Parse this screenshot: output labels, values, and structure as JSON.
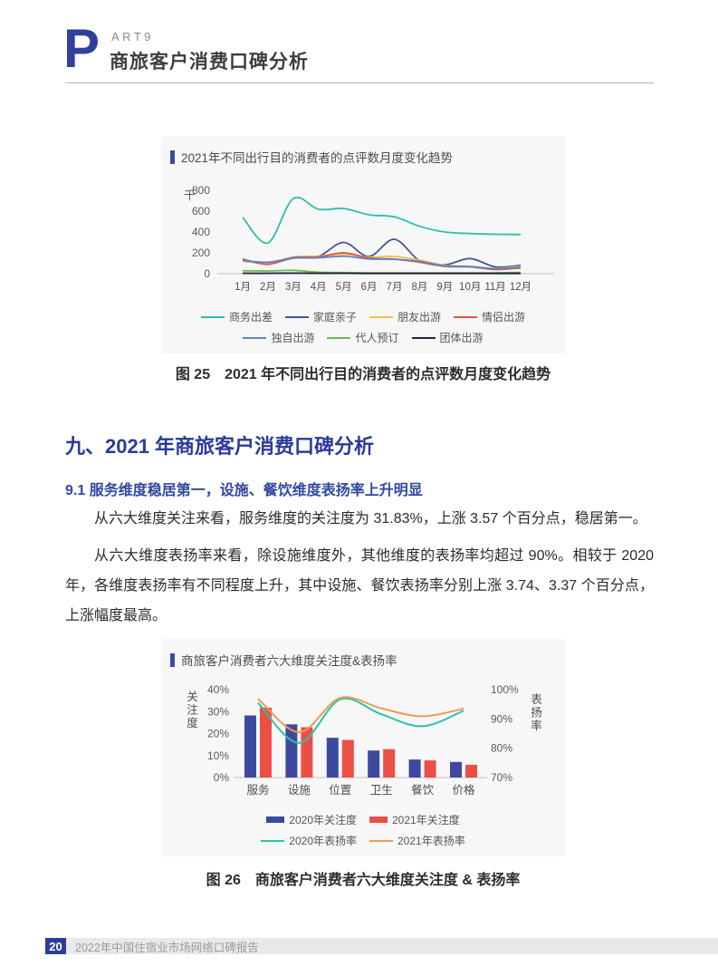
{
  "header": {
    "brand_letter": "P",
    "brand_rest": "ART9",
    "title": "商旅客户消费口碑分析"
  },
  "figure25": {
    "caption": "图 25　2021 年不同出行目的消费者的点评数月度变化趋势"
  },
  "figure26": {
    "caption": "图 26　商旅客户消费者六大维度关注度 & 表扬率"
  },
  "section": {
    "heading": "九、2021 年商旅客户消费口碑分析",
    "sub_heading": "9.1  服务维度稳居第一，设施、餐饮维度表扬率上升明显",
    "para1": "从六大维度关注来看，服务维度的关注度为 31.83%，上涨 3.57 个百分点，稳居第一。",
    "para2": "从六大维度表扬率来看，除设施维度外，其他维度的表扬率均超过 90%。相较于 2020 年，各维度表扬率有不同程度上升，其中设施、餐饮表扬率分别上涨 3.74、3.37 个百分点，上涨幅度最高。"
  },
  "footer": {
    "page_number": "20",
    "text": "2022年中国住宿业市场网络口碑报告"
  },
  "colors": {
    "brand_blue": "#31409B",
    "heading_blue": "#2B3B98",
    "card_bg": "#f7f7f8",
    "axis_line": "#dcdcdc",
    "footer_bar": "#e9e9eb"
  },
  "chart_data": [
    {
      "type": "line",
      "title": "2021年不同出行目的消费者的点评数月度变化趋势",
      "unit": "千",
      "x": [
        "1月",
        "2月",
        "3月",
        "4月",
        "5月",
        "6月",
        "7月",
        "8月",
        "9月",
        "10月",
        "11月",
        "12月"
      ],
      "ylabel": "千",
      "ylim": [
        0,
        800
      ],
      "yticks": [
        0,
        200,
        400,
        600,
        800
      ],
      "grid": false,
      "legend_position": "bottom",
      "series": [
        {
          "name": "商务出差",
          "color": "#2EBFA9",
          "values": [
            540,
            295,
            720,
            618,
            625,
            565,
            545,
            455,
            400,
            385,
            378,
            376
          ]
        },
        {
          "name": "家庭亲子",
          "color": "#4A549C",
          "values": [
            135,
            95,
            150,
            165,
            300,
            165,
            330,
            125,
            85,
            145,
            65,
            80
          ]
        },
        {
          "name": "朋友出游",
          "color": "#F2C24A",
          "values": [
            120,
            100,
            160,
            168,
            188,
            158,
            165,
            130,
            80,
            70,
            50,
            70
          ]
        },
        {
          "name": "情侣出游",
          "color": "#DF5340",
          "values": [
            140,
            90,
            155,
            160,
            200,
            150,
            140,
            110,
            70,
            65,
            40,
            55
          ]
        },
        {
          "name": "独自出游",
          "color": "#5B83C4",
          "values": [
            125,
            110,
            150,
            152,
            168,
            142,
            138,
            118,
            75,
            68,
            48,
            62
          ]
        },
        {
          "name": "代人预订",
          "color": "#6CB956",
          "values": [
            28,
            26,
            32,
            14,
            10,
            8,
            8,
            8,
            8,
            8,
            8,
            12
          ]
        },
        {
          "name": "团体出游",
          "color": "#23233D",
          "values": [
            4,
            4,
            5,
            4,
            4,
            3,
            3,
            3,
            3,
            3,
            3,
            3
          ]
        }
      ],
      "legend_rows": [
        [
          0,
          1,
          2,
          3
        ],
        [
          4,
          5,
          6
        ]
      ]
    },
    {
      "type": "bar+line",
      "title": "商旅客户消费者六大维度关注度&表扬率",
      "categories": [
        "服务",
        "设施",
        "位置",
        "卫生",
        "餐饮",
        "价格"
      ],
      "left_axis": {
        "label": "关注度",
        "range": [
          0,
          40
        ],
        "ticks": [
          0,
          10,
          20,
          30,
          40
        ],
        "tick_suffix": "%"
      },
      "right_axis": {
        "label": "表扬率",
        "range": [
          70,
          100
        ],
        "ticks": [
          70,
          80,
          90,
          100
        ],
        "tick_suffix": "%"
      },
      "grid": false,
      "legend_position": "bottom",
      "bar_series": [
        {
          "name": "2020年关注度",
          "color": "#3C4A9D",
          "values": [
            28.26,
            24.2,
            18.1,
            12.3,
            8.2,
            7.1
          ]
        },
        {
          "name": "2021年关注度",
          "color": "#EC4F45",
          "values": [
            31.83,
            22.9,
            17.1,
            12.9,
            7.8,
            5.8
          ]
        }
      ],
      "line_series": [
        {
          "name": "2020年表扬率",
          "color": "#2CC3AC",
          "values": [
            95.5,
            81.8,
            96.7,
            91.6,
            87.5,
            92.8
          ]
        },
        {
          "name": "2021年表扬率",
          "color": "#F0994F",
          "values": [
            96.9,
            85.5,
            97.2,
            93.6,
            90.9,
            93.5
          ]
        }
      ]
    }
  ]
}
